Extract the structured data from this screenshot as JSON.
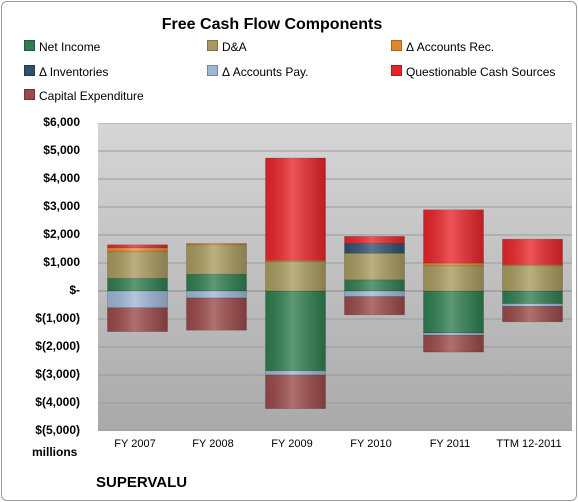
{
  "chart_data": {
    "type": "bar",
    "stacked": true,
    "title": "Free Cash Flow Components",
    "units_label": "millions",
    "company": "SUPERVALU",
    "categories": [
      "FY 2007",
      "FY 2008",
      "FY 2009",
      "FY 2010",
      "FY 2011",
      "TTM 12-2011"
    ],
    "ylim": [
      -5000,
      6000
    ],
    "yticks": [
      6000,
      5000,
      4000,
      3000,
      2000,
      1000,
      0,
      -1000,
      -2000,
      -3000,
      -4000,
      -5000
    ],
    "ytick_labels": [
      "$6,000",
      "$5,000",
      "$4,000",
      "$3,000",
      "$2,000",
      "$1,000",
      "$-",
      "$(1,000)",
      "$(2,000)",
      "$(3,000)",
      "$(4,000)",
      "$(5,000)"
    ],
    "grid": true,
    "legend_position": "top",
    "series": [
      {
        "name": "Net Income",
        "color": "#2e7d4f",
        "values": [
          450,
          600,
          -2850,
          400,
          -1500,
          -450
        ]
      },
      {
        "name": "D&A",
        "color": "#a89a5e",
        "values": [
          950,
          1050,
          1050,
          950,
          900,
          900
        ]
      },
      {
        "name": "Δ Accounts Rec.",
        "color": "#e4862c",
        "values": [
          150,
          50,
          50,
          0,
          100,
          50
        ]
      },
      {
        "name": "Δ Inventories",
        "color": "#2f4f6f",
        "values": [
          0,
          0,
          0,
          350,
          0,
          0
        ]
      },
      {
        "name": "Δ Accounts Pay.",
        "color": "#9db7d5",
        "values": [
          -600,
          -250,
          -150,
          -200,
          -80,
          -100
        ]
      },
      {
        "name": "Questionable Cash Sources",
        "color": "#e8242a",
        "values": [
          100,
          0,
          3650,
          250,
          1900,
          900
        ]
      },
      {
        "name": "Capital Expenditure",
        "color": "#9a4848",
        "values": [
          -850,
          -1150,
          -1200,
          -650,
          -600,
          -550
        ]
      }
    ]
  }
}
